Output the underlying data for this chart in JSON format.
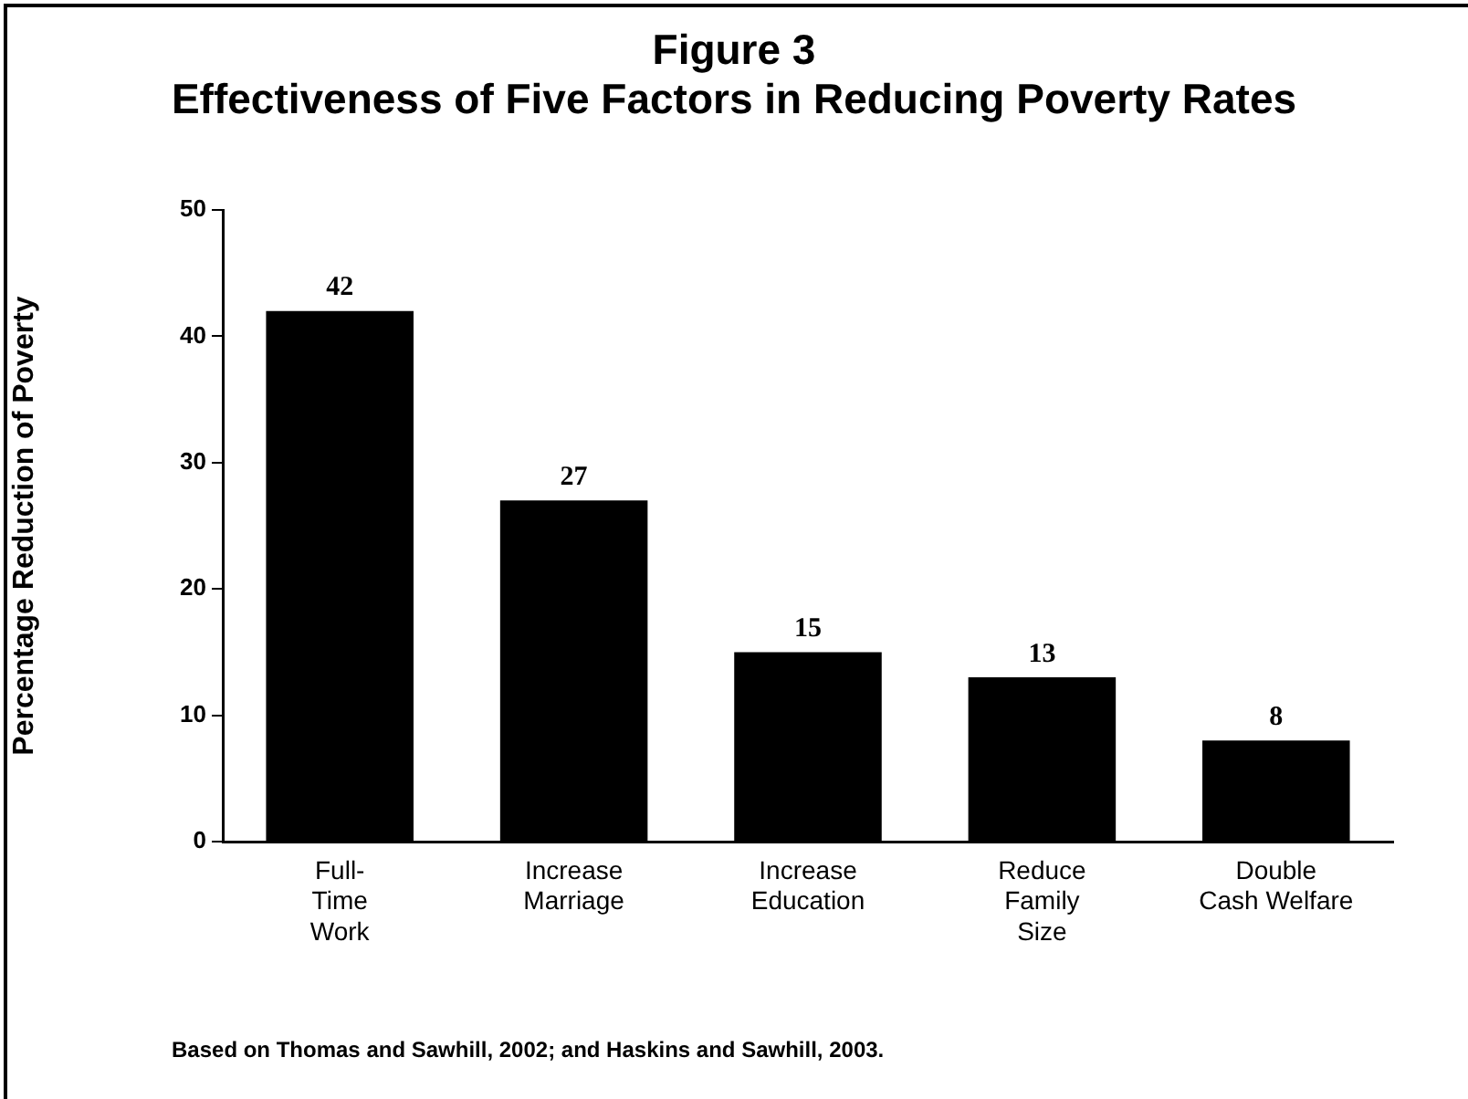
{
  "chart_data": {
    "type": "bar",
    "title": "Figure 3\nEffectiveness of Five Factors in Reducing Poverty Rates",
    "ylabel": "Percentage Reduction of Poverty",
    "categories": [
      "Full-\nTime\nWork",
      "Increase\nMarriage",
      "Increase\nEducation",
      "Reduce\nFamily\nSize",
      "Double\nCash Welfare"
    ],
    "values": [
      42,
      27,
      15,
      13,
      8
    ],
    "color": "#000000",
    "ylim": [
      0,
      50
    ],
    "yticks": [
      0,
      10,
      20,
      30,
      40,
      50
    ],
    "grid": false,
    "data_labels": true,
    "annotations": [
      "Based on Thomas and Sawhill, 2002; and Haskins and Sawhill, 2003."
    ]
  }
}
